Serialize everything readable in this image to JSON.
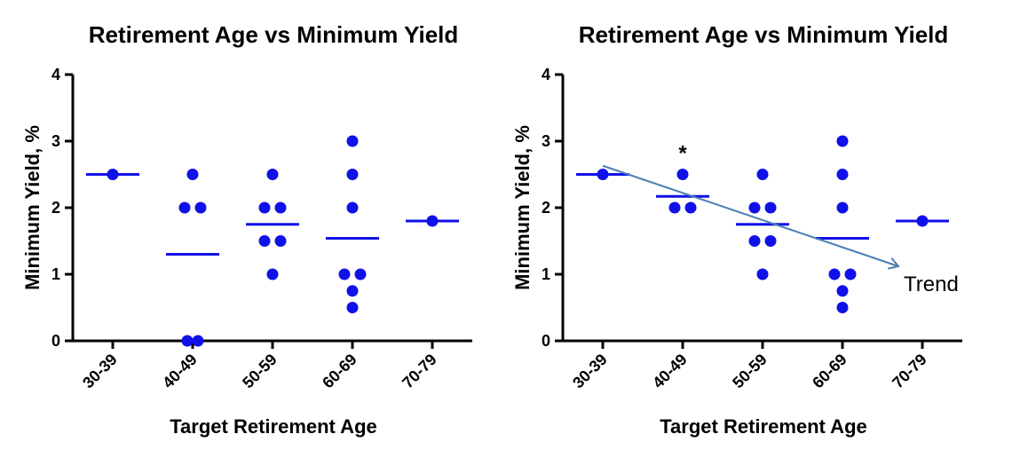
{
  "chart_data": [
    {
      "type": "scatter",
      "title": "Retirement Age vs Minimum Yield",
      "xlabel": "Target Retirement Age",
      "ylabel": "Minimum Yield, %",
      "categories": [
        "30-39",
        "40-49",
        "50-59",
        "60-69",
        "70-79"
      ],
      "ylim": [
        0,
        4
      ],
      "yticks": [
        "0",
        "1",
        "2",
        "3",
        "4"
      ],
      "grid": false,
      "legend": "none",
      "color": "#1010e8",
      "series": [
        {
          "values": [
            [
              2.5
            ],
            [
              2,
              2,
              2.5,
              0,
              0
            ],
            [
              2.5,
              2,
              2,
              1.5,
              1.5,
              1
            ],
            [
              3,
              2.5,
              2,
              1,
              1,
              0.75,
              0.5
            ],
            [
              1.8
            ]
          ]
        }
      ],
      "means": [
        2.5,
        1.3,
        1.75,
        1.54,
        1.8
      ]
    },
    {
      "type": "scatter",
      "title": "Retirement Age vs Minimum Yield",
      "xlabel": "Target Retirement Age",
      "ylabel": "Minimum Yield, %",
      "categories": [
        "30-39",
        "40-49",
        "50-59",
        "60-69",
        "70-79"
      ],
      "ylim": [
        0,
        4
      ],
      "yticks": [
        "0",
        "1",
        "2",
        "3",
        "4"
      ],
      "grid": false,
      "legend": "none",
      "color": "#1010e8",
      "series": [
        {
          "values": [
            [
              2.5
            ],
            [
              2.5,
              2,
              2
            ],
            [
              2.5,
              2,
              2,
              1.5,
              1.5,
              1
            ],
            [
              3,
              2.5,
              2,
              1,
              1,
              0.75,
              0.5
            ],
            [
              1.8
            ]
          ]
        }
      ],
      "means": [
        2.5,
        2.17,
        1.75,
        1.54,
        1.8
      ],
      "annotations": {
        "star_text": "*",
        "star_category": "40-49",
        "trend_label": "Trend",
        "trend_color": "#4a7fb5"
      },
      "trend": {
        "start": [
          0.5,
          2.63
        ],
        "end": [
          4.2,
          1.12
        ]
      }
    }
  ]
}
